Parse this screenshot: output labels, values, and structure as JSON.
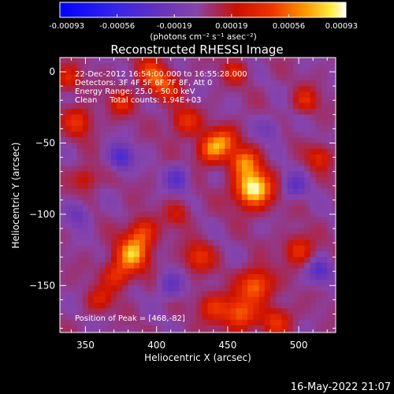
{
  "chart_data": {
    "type": "heatmap",
    "title": "Reconstructed RHESSI Image",
    "xlabel": "Heliocentric X (arcsec)",
    "ylabel": "Heliocentric Y (arcsec)",
    "xlim": [
      332,
      526
    ],
    "ylim": [
      -183,
      10
    ],
    "x_ticks": [
      350,
      400,
      450,
      500
    ],
    "y_ticks": [
      0,
      -50,
      -100,
      -150
    ],
    "colorbar": {
      "ticks": [
        "-0.00093",
        "-0.00056",
        "-0.00019",
        "0.00019",
        "0.00056",
        "0.00093"
      ],
      "range": [
        -0.00093,
        0.00093
      ],
      "unit_label": "(photons cm⁻² s⁻¹ asec⁻²)"
    },
    "annotations": [
      "22-Dec-2012 16:54:00.000 to 16:55:28.000",
      "Detectors: 3F 4F 5F 6F 7F 8F, Att 0",
      "Energy Range: 25.0 - 50.0 keV",
      "Clean     Total counts: 1.94E+03"
    ],
    "peak_label": "Position of Peak = [468,-82]",
    "peak": [
      468,
      -82
    ],
    "sources": [
      {
        "x": 468,
        "y": -82,
        "amp": 0.00093,
        "sigma": 9
      },
      {
        "x": 462,
        "y": -63,
        "amp": 0.00055,
        "sigma": 7
      },
      {
        "x": 448,
        "y": -48,
        "amp": 0.00045,
        "sigma": 7
      },
      {
        "x": 383,
        "y": -128,
        "amp": 0.0007,
        "sigma": 8
      },
      {
        "x": 390,
        "y": -113,
        "amp": 0.00045,
        "sigma": 7
      },
      {
        "x": 372,
        "y": -143,
        "amp": 0.0004,
        "sigma": 7
      },
      {
        "x": 438,
        "y": -55,
        "amp": 0.00055,
        "sigma": 7
      },
      {
        "x": 420,
        "y": -35,
        "amp": 0.0004,
        "sigma": 7
      },
      {
        "x": 405,
        "y": -10,
        "amp": 0.00045,
        "sigma": 7
      },
      {
        "x": 395,
        "y": 0,
        "amp": 0.0004,
        "sigma": 7
      },
      {
        "x": 375,
        "y": -22,
        "amp": 0.00035,
        "sigma": 6
      },
      {
        "x": 345,
        "y": -35,
        "amp": 0.0004,
        "sigma": 7
      },
      {
        "x": 350,
        "y": -75,
        "amp": 0.0003,
        "sigma": 6
      },
      {
        "x": 338,
        "y": -5,
        "amp": 0.00035,
        "sigma": 6
      },
      {
        "x": 470,
        "y": -150,
        "amp": 0.0006,
        "sigma": 8
      },
      {
        "x": 458,
        "y": -170,
        "amp": 0.00055,
        "sigma": 8
      },
      {
        "x": 440,
        "y": -165,
        "amp": 0.0004,
        "sigma": 7
      },
      {
        "x": 430,
        "y": -130,
        "amp": 0.0004,
        "sigma": 7
      },
      {
        "x": 500,
        "y": -125,
        "amp": 0.0004,
        "sigma": 7
      },
      {
        "x": 515,
        "y": -60,
        "amp": 0.00035,
        "sigma": 6
      },
      {
        "x": 505,
        "y": -20,
        "amp": 0.00035,
        "sigma": 6
      },
      {
        "x": 455,
        "y": 0,
        "amp": 0.0003,
        "sigma": 6
      },
      {
        "x": 485,
        "y": -175,
        "amp": 0.0004,
        "sigma": 7
      },
      {
        "x": 360,
        "y": -160,
        "amp": 0.0003,
        "sigma": 6
      },
      {
        "x": 415,
        "y": -100,
        "amp": 0.00025,
        "sigma": 6
      },
      {
        "x": 375,
        "y": -60,
        "amp": -0.00045,
        "sigma": 6
      },
      {
        "x": 415,
        "y": -75,
        "amp": -0.00035,
        "sigma": 6
      },
      {
        "x": 497,
        "y": -80,
        "amp": -0.0003,
        "sigma": 6
      },
      {
        "x": 515,
        "y": -140,
        "amp": -0.00035,
        "sigma": 6
      },
      {
        "x": 410,
        "y": -150,
        "amp": -0.0003,
        "sigma": 6
      },
      {
        "x": 345,
        "y": -100,
        "amp": -0.00025,
        "sigma": 6
      },
      {
        "x": 480,
        "y": -40,
        "amp": -0.0002,
        "sigma": 6
      }
    ],
    "grid": false,
    "legend": "none"
  },
  "footer": {
    "timestamp": "16-May-2022 21:07"
  }
}
